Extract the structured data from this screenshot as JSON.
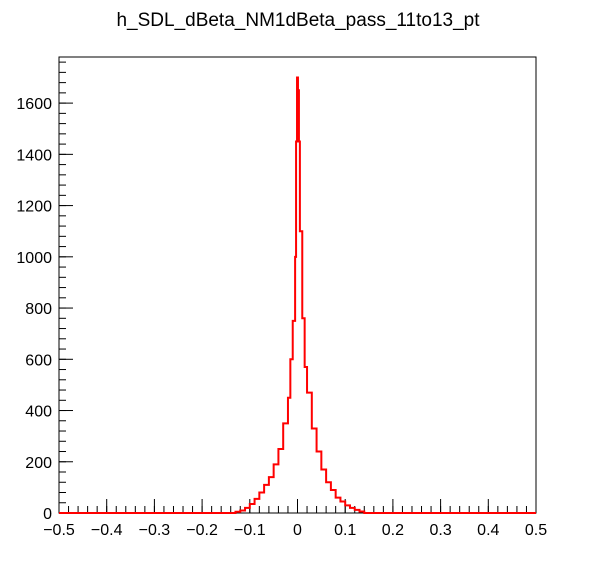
{
  "chart_data": {
    "type": "histogram",
    "title": "h_SDL_dBeta_NM1dBeta_pass_11to13_pt",
    "xlabel": "",
    "ylabel": "",
    "xlim": [
      -0.5,
      0.5
    ],
    "ylim": [
      0,
      1780
    ],
    "x_ticks": [
      -0.5,
      -0.4,
      -0.3,
      -0.2,
      -0.1,
      0,
      0.1,
      0.2,
      0.3,
      0.4,
      0.5
    ],
    "x_tick_labels": [
      "−0.5",
      "−0.4",
      "−0.3",
      "−0.2",
      "−0.1",
      "0",
      "0.1",
      "0.2",
      "0.3",
      "0.4",
      "0.5"
    ],
    "y_ticks": [
      0,
      200,
      400,
      600,
      800,
      1000,
      1200,
      1400,
      1600
    ],
    "y_tick_labels": [
      "0",
      "200",
      "400",
      "600",
      "800",
      "1000",
      "1200",
      "1400",
      "1600"
    ],
    "grid": false,
    "series": [
      {
        "color": "#ff0000",
        "points": [
          [
            -0.5,
            0
          ],
          [
            -0.14,
            0
          ],
          [
            -0.13,
            5
          ],
          [
            -0.12,
            10
          ],
          [
            -0.11,
            20
          ],
          [
            -0.1,
            35
          ],
          [
            -0.09,
            55
          ],
          [
            -0.08,
            80
          ],
          [
            -0.07,
            110
          ],
          [
            -0.06,
            140
          ],
          [
            -0.05,
            190
          ],
          [
            -0.04,
            250
          ],
          [
            -0.03,
            350
          ],
          [
            -0.02,
            450
          ],
          [
            -0.015,
            600
          ],
          [
            -0.01,
            750
          ],
          [
            -0.005,
            1000
          ],
          [
            -0.003,
            1450
          ],
          [
            -0.001,
            1700
          ],
          [
            0.001,
            1650
          ],
          [
            0.003,
            1450
          ],
          [
            0.005,
            1100
          ],
          [
            0.01,
            760
          ],
          [
            0.015,
            570
          ],
          [
            0.02,
            470
          ],
          [
            0.03,
            330
          ],
          [
            0.04,
            240
          ],
          [
            0.05,
            170
          ],
          [
            0.06,
            120
          ],
          [
            0.07,
            90
          ],
          [
            0.08,
            60
          ],
          [
            0.09,
            45
          ],
          [
            0.1,
            30
          ],
          [
            0.11,
            20
          ],
          [
            0.12,
            12
          ],
          [
            0.13,
            6
          ],
          [
            0.14,
            0
          ],
          [
            0.5,
            0
          ]
        ]
      }
    ]
  }
}
